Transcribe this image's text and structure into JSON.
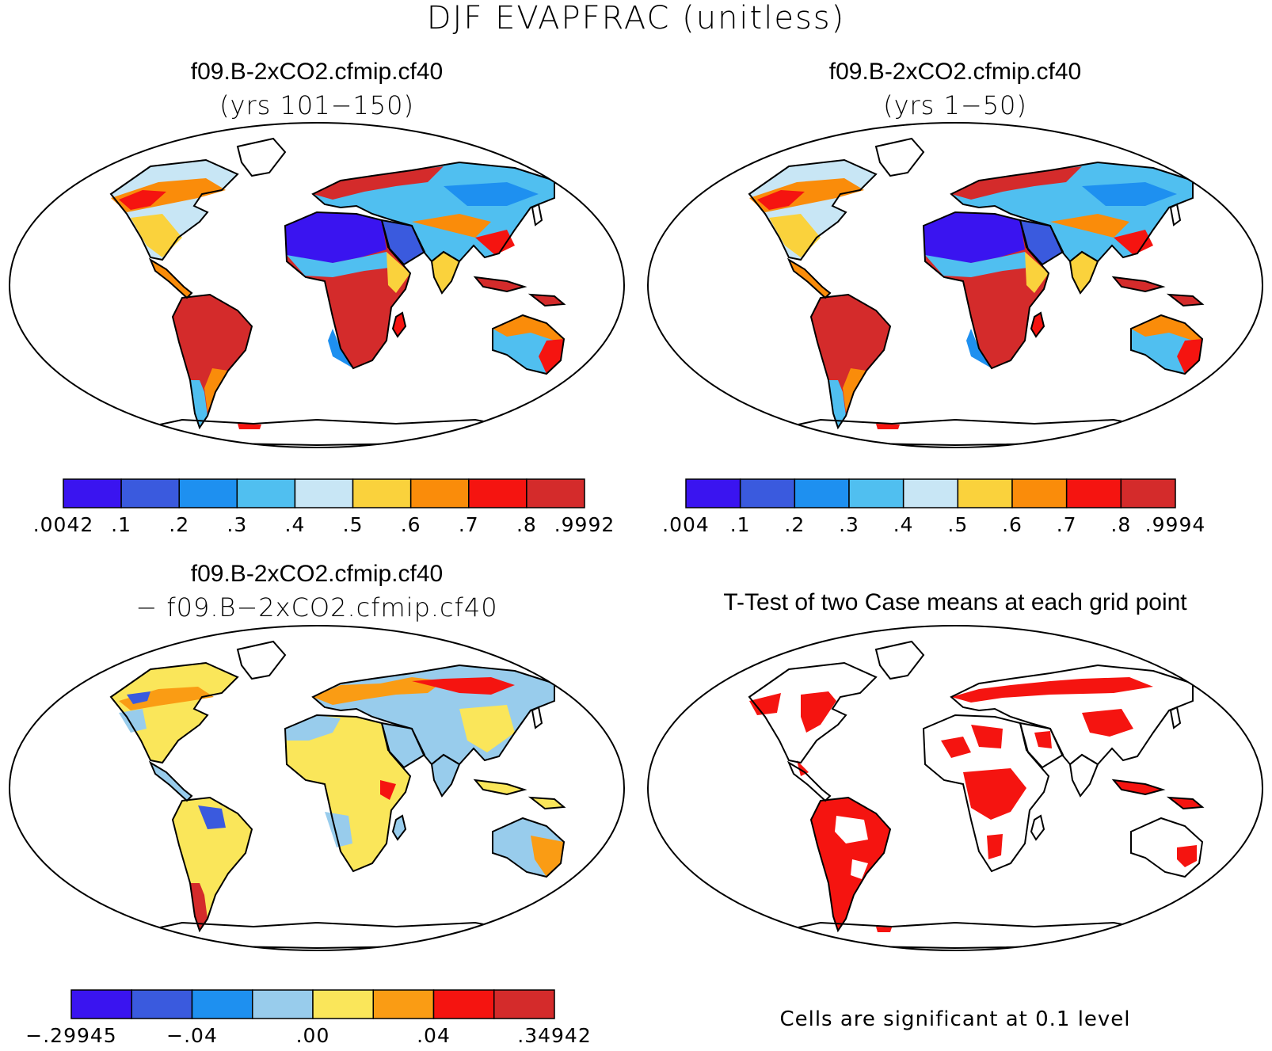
{
  "title": "DJF EVAPFRAC (unitless)",
  "panels": [
    {
      "id": "top-left",
      "title": "f09.B-2xCO2.cfmip.cf40",
      "subtitle": "(yrs 101−150)",
      "colorbar": {
        "colors": [
          "#3a14f0",
          "#3a5ade",
          "#1e90f0",
          "#50bff0",
          "#c8e6f5",
          "#fad23c",
          "#fa8c0a",
          "#f51410",
          "#d42b2b"
        ],
        "labels": [
          ".0042",
          ".1",
          ".2",
          ".3",
          ".4",
          ".5",
          ".6",
          ".7",
          ".8",
          ".9992"
        ]
      }
    },
    {
      "id": "top-right",
      "title": "f09.B-2xCO2.cfmip.cf40",
      "subtitle": "(yrs 1−50)",
      "colorbar": {
        "colors": [
          "#3a14f0",
          "#3a5ade",
          "#1e90f0",
          "#50bff0",
          "#c8e6f5",
          "#fad23c",
          "#fa8c0a",
          "#f51410",
          "#d42b2b"
        ],
        "labels": [
          ".004",
          ".1",
          ".2",
          ".3",
          ".4",
          ".5",
          ".6",
          ".7",
          ".8",
          ".9994"
        ]
      }
    },
    {
      "id": "bottom-left",
      "title": "f09.B-2xCO2.cfmip.cf40",
      "subtitle": "− f09.B−2xCO2.cfmip.cf40",
      "colorbar": {
        "colors": [
          "#3a14f0",
          "#3a5ade",
          "#1e90f0",
          "#98ccec",
          "#fae65a",
          "#fa9c14",
          "#f51410",
          "#d42b2b"
        ],
        "labels": [
          "−.29945",
          "−.04",
          ".00",
          ".04",
          ".34942"
        ]
      }
    },
    {
      "id": "bottom-right",
      "title": "T-Test of two Case means at each grid point",
      "note": "Cells are significant at 0.1 level"
    }
  ],
  "map_colors": {
    "outline": "#000000",
    "land_top": [
      "#d42b2b",
      "#f51410",
      "#fa8c0a",
      "#fad23c",
      "#c8e6f5",
      "#50bff0",
      "#1e90f0",
      "#3a14f0"
    ],
    "land_diff": [
      "#fae65a",
      "#98ccec",
      "#fa9c14",
      "#f51410",
      "#3a14f0"
    ],
    "significant": "#f51410"
  }
}
